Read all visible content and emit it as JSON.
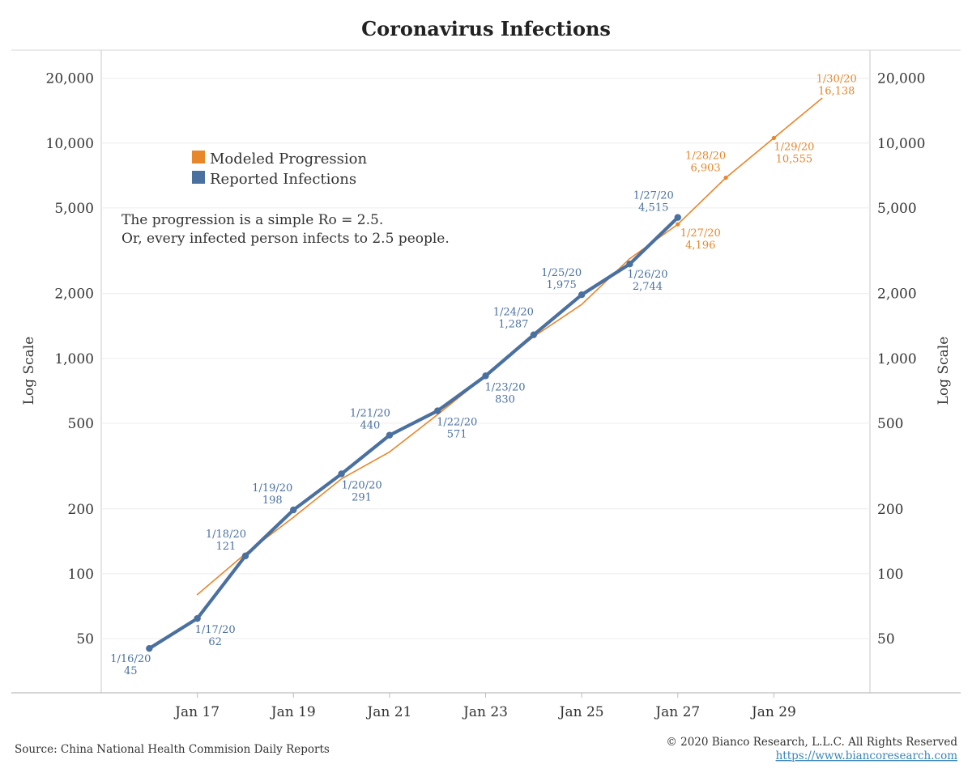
{
  "chart_data": {
    "type": "line",
    "title": "Coronavirus Infections",
    "ylabel_left": "Log Scale",
    "ylabel_right": "Log Scale",
    "y_scale": "log",
    "ylim": [
      28,
      27000
    ],
    "xlim": [
      "2020-01-15",
      "2020-01-31"
    ],
    "y_ticks": [
      {
        "value": 50,
        "label": "50"
      },
      {
        "value": 100,
        "label": "100"
      },
      {
        "value": 200,
        "label": "200"
      },
      {
        "value": 500,
        "label": "500"
      },
      {
        "value": 1000,
        "label": "1,000"
      },
      {
        "value": 2000,
        "label": "2,000"
      },
      {
        "value": 5000,
        "label": "5,000"
      },
      {
        "value": 10000,
        "label": "10,000"
      },
      {
        "value": 20000,
        "label": "20,000"
      }
    ],
    "x_ticks": [
      {
        "date": "2020-01-17",
        "label": "Jan 17"
      },
      {
        "date": "2020-01-19",
        "label": "Jan 19"
      },
      {
        "date": "2020-01-21",
        "label": "Jan 21"
      },
      {
        "date": "2020-01-23",
        "label": "Jan 23"
      },
      {
        "date": "2020-01-25",
        "label": "Jan 25"
      },
      {
        "date": "2020-01-27",
        "label": "Jan 27"
      },
      {
        "date": "2020-01-29",
        "label": "Jan 29"
      }
    ],
    "legend_position": "top-left",
    "grid": true,
    "series": [
      {
        "name": "Modeled Progression",
        "color": "#e8862a",
        "points": [
          {
            "date": "2020-01-17",
            "value": 80
          },
          {
            "date": "2020-01-18",
            "value": 124
          },
          {
            "date": "2020-01-19",
            "value": 183
          },
          {
            "date": "2020-01-20",
            "value": 276
          },
          {
            "date": "2020-01-21",
            "value": 368
          },
          {
            "date": "2020-01-22",
            "value": 548
          },
          {
            "date": "2020-01-23",
            "value": 830
          },
          {
            "date": "2020-01-24",
            "value": 1261
          },
          {
            "date": "2020-01-25",
            "value": 1780
          },
          {
            "date": "2020-01-26",
            "value": 2906
          },
          {
            "date": "2020-01-27",
            "value": 4196,
            "label": [
              "1/27/20",
              "4,196"
            ]
          },
          {
            "date": "2020-01-28",
            "value": 6903,
            "label": [
              "1/28/20",
              "6,903"
            ]
          },
          {
            "date": "2020-01-29",
            "value": 10555,
            "label": [
              "1/29/20",
              "10,555"
            ]
          },
          {
            "date": "2020-01-30",
            "value": 16138,
            "label": [
              "1/30/20",
              "16,138"
            ]
          }
        ]
      },
      {
        "name": "Reported Infections",
        "color": "#4a70a0",
        "points": [
          {
            "date": "2020-01-16",
            "value": 45,
            "label": [
              "1/16/20",
              "45"
            ]
          },
          {
            "date": "2020-01-17",
            "value": 62,
            "label": [
              "1/17/20",
              "62"
            ]
          },
          {
            "date": "2020-01-18",
            "value": 121,
            "label": [
              "1/18/20",
              "121"
            ]
          },
          {
            "date": "2020-01-19",
            "value": 198,
            "label": [
              "1/19/20",
              "198"
            ]
          },
          {
            "date": "2020-01-20",
            "value": 291,
            "label": [
              "1/20/20",
              "291"
            ]
          },
          {
            "date": "2020-01-21",
            "value": 440,
            "label": [
              "1/21/20",
              "440"
            ]
          },
          {
            "date": "2020-01-22",
            "value": 571,
            "label": [
              "1/22/20",
              "571"
            ]
          },
          {
            "date": "2020-01-23",
            "value": 830,
            "label": [
              "1/23/20",
              "830"
            ]
          },
          {
            "date": "2020-01-24",
            "value": 1287,
            "label": [
              "1/24/20",
              "1,287"
            ]
          },
          {
            "date": "2020-01-25",
            "value": 1975,
            "label": [
              "1/25/20",
              "1,975"
            ]
          },
          {
            "date": "2020-01-26",
            "value": 2744,
            "label": [
              "1/26/20",
              "2,744"
            ]
          },
          {
            "date": "2020-01-27",
            "value": 4515,
            "label": [
              "1/27/20",
              "4,515"
            ]
          }
        ]
      }
    ],
    "annotation": [
      "The progression is a simple Ro = 2.5.",
      "Or, every infected person infects to 2.5 people."
    ]
  },
  "footer": {
    "source": "Source: China National Health Commision Daily Reports",
    "copyright": "© 2020 Bianco Research, L.L.C. All Rights Reserved",
    "url": "https://www.biancoresearch.com"
  }
}
